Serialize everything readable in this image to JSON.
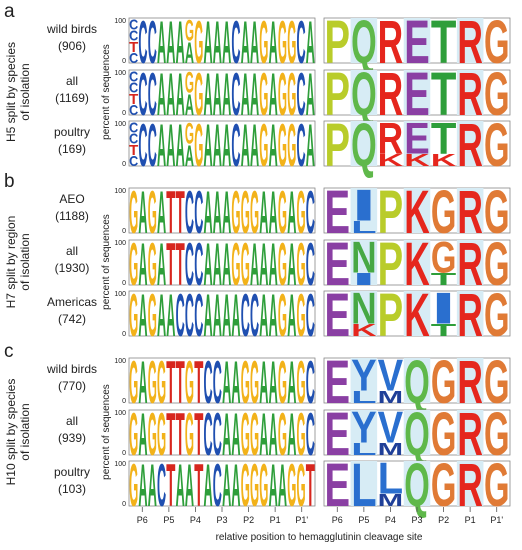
{
  "figure": {
    "panels": [
      {
        "letter": "a",
        "group_title_lines": [
          "H5 split by species",
          "of isolation"
        ],
        "ylabel": "percent of sequences",
        "rows": [
          {
            "name_lines": [
              "wild birds",
              "(906)"
            ],
            "nt": [
              "CCTC",
              "C",
              "C",
              "A",
              "A",
              "A",
              "GA",
              "G",
              "A",
              "A",
              "A",
              "C",
              "A",
              "A",
              "G",
              "A",
              "G",
              "G",
              "C",
              "A"
            ],
            "aa": [
              "P",
              "Q",
              "R",
              "E",
              "T",
              "R",
              "G"
            ]
          },
          {
            "name_lines": [
              "all",
              "(1169)"
            ],
            "nt": [
              "CCTC",
              "C",
              "C",
              "A",
              "A",
              "A",
              "GA",
              "G",
              "A",
              "A",
              "A",
              "C",
              "A",
              "A",
              "G",
              "A",
              "G",
              "G",
              "C",
              "A"
            ],
            "aa": [
              "P",
              "Q",
              "R",
              "E",
              "T",
              "R",
              "G"
            ]
          },
          {
            "name_lines": [
              "poultry",
              "(169)"
            ],
            "nt": [
              "CCTC",
              "C",
              "C",
              "A",
              "A",
              "A",
              "GA",
              "G",
              "A",
              "A",
              "A",
              "C",
              "A",
              "A",
              "G",
              "A",
              "G",
              "G",
              "C",
              "A"
            ],
            "aa": [
              "P",
              "Q",
              "RK",
              "EK",
              "TK",
              "R",
              "G"
            ]
          }
        ]
      },
      {
        "letter": "b",
        "group_title_lines": [
          "H7 split by region",
          "of isolation"
        ],
        "ylabel": "percent of sequences",
        "rows": [
          {
            "name_lines": [
              "AEO",
              "(1188)"
            ],
            "nt": [
              "G",
              "A",
              "G",
              "A",
              "T",
              "T",
              "C",
              "C",
              "A",
              "A",
              "A",
              "G",
              "G",
              "G",
              "A",
              "A",
              "G",
              "A",
              "G",
              "C"
            ],
            "aa": [
              "E",
              "IL",
              "P",
              "K",
              "G",
              "R",
              "G"
            ]
          },
          {
            "name_lines": [
              "all",
              "(1930)"
            ],
            "nt": [
              "G",
              "A",
              "G",
              "A",
              "T",
              "T",
              "C",
              "C",
              "A",
              "A",
              "A",
              "G",
              "G",
              "A",
              "A",
              "A",
              "G",
              "A",
              "G",
              "C"
            ],
            "aa": [
              "E",
              "NI",
              "P",
              "K",
              "GT",
              "R",
              "G"
            ]
          },
          {
            "name_lines": [
              "Americas",
              "(742)"
            ],
            "nt": [
              "G",
              "A",
              "G",
              "A",
              "A",
              "C",
              "C",
              "C",
              "A",
              "A",
              "A",
              "A",
              "C",
              "C",
              "A",
              "A",
              "G",
              "A",
              "G",
              "C"
            ],
            "aa": [
              "E",
              "NK",
              "P",
              "K",
              "IT",
              "R",
              "G"
            ]
          }
        ]
      },
      {
        "letter": "c",
        "group_title_lines": [
          "H10 split by species",
          "of isolation"
        ],
        "ylabel": "percent of sequences",
        "rows": [
          {
            "name_lines": [
              "wild birds",
              "(770)"
            ],
            "nt": [
              "G",
              "A",
              "G",
              "G",
              "T",
              "T",
              "G",
              "T",
              "C",
              "C",
              "A",
              "A",
              "G",
              "G",
              "A",
              "A",
              "G",
              "A",
              "G",
              "C"
            ],
            "aa": [
              "E",
              "YL",
              "VM",
              "Q",
              "G",
              "R",
              "G"
            ]
          },
          {
            "name_lines": [
              "all",
              "(939)"
            ],
            "nt": [
              "G",
              "A",
              "G",
              "G",
              "T",
              "T",
              "G",
              "T",
              "C",
              "C",
              "A",
              "A",
              "G",
              "G",
              "A",
              "A",
              "G",
              "A",
              "G",
              "C"
            ],
            "aa": [
              "E",
              "YL",
              "VM",
              "Q",
              "G",
              "R",
              "G"
            ]
          },
          {
            "name_lines": [
              "poultry",
              "(103)"
            ],
            "nt": [
              "G",
              "A",
              "A",
              "C",
              "T",
              "A",
              "A",
              "T",
              "A",
              "C",
              "A",
              "A",
              "G",
              "G",
              "G",
              "A",
              "A",
              "G",
              "G",
              "T"
            ],
            "aa": [
              "E",
              "L",
              "LM",
              "Q",
              "G",
              "R",
              "G"
            ]
          }
        ]
      }
    ],
    "ytick_top": "100",
    "ytick_bottom": "0",
    "xticks": [
      "P6",
      "P5",
      "P4",
      "P3",
      "P2",
      "P1",
      "P1'",
      "P6",
      "P5",
      "P4",
      "P3",
      "P2",
      "P1",
      "P1'"
    ],
    "xlabel": "relative position to hemagglutinin cleavage site"
  },
  "colors": {
    "A": "#2e9e3a",
    "C": "#1f4fb0",
    "G": "#f2b21a",
    "T": "#d7261e",
    "P": "#b9cc2a",
    "Q": "#5fb84a",
    "R": "#e5261d",
    "E": "#8a3fa3",
    "T_aa": "#2e9e3a",
    "G_aa": "#e07a35",
    "K": "#e5261d",
    "I": "#2a6fcf",
    "L": "#2a6fcf",
    "N": "#47a844",
    "Y": "#2a6fcf",
    "V": "#2a6fcf",
    "M": "#1f3f98",
    "shade": "#d7ecf5"
  },
  "chart_data": [
    {
      "type": "sequence-logo",
      "title": "H5 split by species of isolation",
      "ylabel": "percent of sequences",
      "xlabel": "relative position to hemagglutinin cleavage site",
      "ylim": [
        0,
        100
      ],
      "positions": [
        "P6",
        "P5",
        "P4",
        "P3",
        "P2",
        "P1",
        "P1'"
      ],
      "series": [
        {
          "name": "wild birds (906)",
          "protein_consensus": [
            "P",
            "Q",
            "R",
            "E",
            "T",
            "R",
            "G"
          ],
          "nucleotide_consensus": "CCTCAAAGAGAAACAAGAGGCA"
        },
        {
          "name": "all (1169)",
          "protein_consensus": [
            "P",
            "Q",
            "R",
            "E",
            "T",
            "R",
            "G"
          ],
          "nucleotide_consensus": "CCTCAAAGAGAAACAAGAGGCA"
        },
        {
          "name": "poultry (169)",
          "protein_consensus": [
            "P",
            "Q",
            "R",
            "E",
            "T",
            "R",
            "G"
          ],
          "minor_residues": {
            "P4": "K",
            "P3": "K",
            "P2": "K"
          },
          "nucleotide_consensus": "CCTCAAAGAGAAACAAGAGGCA"
        }
      ]
    },
    {
      "type": "sequence-logo",
      "title": "H7 split by region of isolation",
      "ylabel": "percent of sequences",
      "xlabel": "relative position to hemagglutinin cleavage site",
      "ylim": [
        0,
        100
      ],
      "positions": [
        "P6",
        "P5",
        "P4",
        "P3",
        "P2",
        "P1",
        "P1'"
      ],
      "series": [
        {
          "name": "AEO (1188)",
          "protein_consensus": [
            "E",
            "I",
            "P",
            "K",
            "G",
            "R",
            "G"
          ],
          "minor_residues": {
            "P5": "L"
          },
          "nucleotide_consensus": "GAGATTCCAAAGGGAAGAGC"
        },
        {
          "name": "all (1930)",
          "protein_consensus": [
            "E",
            "N",
            "P",
            "K",
            "G",
            "R",
            "G"
          ],
          "minor_residues": {
            "P5": "I",
            "P2": "T"
          },
          "nucleotide_consensus": "GAGATTCCAAAGGAAAGAGC"
        },
        {
          "name": "Americas (742)",
          "protein_consensus": [
            "E",
            "N",
            "P",
            "K",
            "I",
            "R",
            "G"
          ],
          "minor_residues": {
            "P5": "K",
            "P2": "T"
          },
          "nucleotide_consensus": "GAGAACCCAAAACCAAGAGC"
        }
      ]
    },
    {
      "type": "sequence-logo",
      "title": "H10 split by species of isolation",
      "ylabel": "percent of sequences",
      "xlabel": "relative position to hemagglutinin cleavage site",
      "ylim": [
        0,
        100
      ],
      "positions": [
        "P6",
        "P5",
        "P4",
        "P3",
        "P2",
        "P1",
        "P1'"
      ],
      "series": [
        {
          "name": "wild birds (770)",
          "protein_consensus": [
            "E",
            "Y",
            "V",
            "Q",
            "G",
            "R",
            "G"
          ],
          "minor_residues": {
            "P5": "L",
            "P4": "M"
          },
          "nucleotide_consensus": "GAGGTTGTCCAAGGAAGAGC"
        },
        {
          "name": "all (939)",
          "protein_consensus": [
            "E",
            "Y",
            "V",
            "Q",
            "G",
            "R",
            "G"
          ],
          "minor_residues": {
            "P5": "L",
            "P4": "M"
          },
          "nucleotide_consensus": "GAGGTTGTCCAAGGAAGAGC"
        },
        {
          "name": "poultry (103)",
          "protein_consensus": [
            "E",
            "L",
            "L",
            "Q",
            "G",
            "R",
            "G"
          ],
          "minor_residues": {
            "P4": "M"
          },
          "nucleotide_consensus": "GAACTAATACAAGGGAAGGT"
        }
      ]
    }
  ]
}
